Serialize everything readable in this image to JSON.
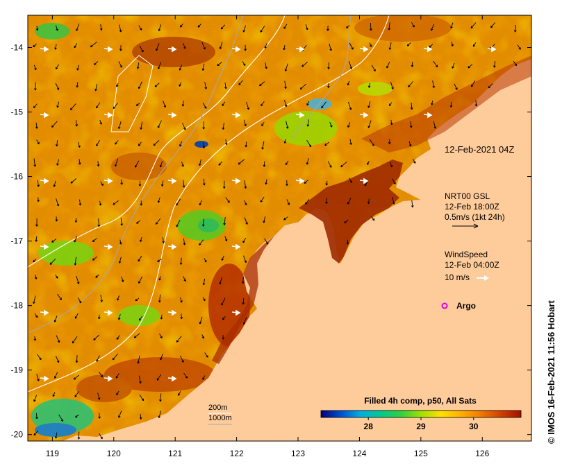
{
  "map": {
    "lon_range": [
      118.6,
      126.8
    ],
    "lat_range": [
      -20.1,
      -13.5
    ],
    "lon_ticks": [
      119,
      120,
      121,
      122,
      123,
      124,
      125,
      126
    ],
    "lat_ticks": [
      -14,
      -15,
      -16,
      -17,
      -18,
      -19,
      -20
    ],
    "lon_tick_labels": [
      "119",
      "120",
      "121",
      "122",
      "123",
      "124",
      "125",
      "126"
    ],
    "lat_tick_labels": [
      "-14",
      "-15",
      "-16",
      "-17",
      "-18",
      "-19",
      "-20"
    ],
    "land_color": "#fecb9b",
    "warm_color": "#e08a00",
    "hot_color": "#a02a00"
  },
  "labels": {
    "timestamp": "12-Feb-2021 04Z",
    "current_title": "NRT00 GSL",
    "current_time": "12-Feb 18:00Z",
    "current_scale": "0.5m/s (1kt 24h)",
    "wind_title": "WindSpeed",
    "wind_time": "12-Feb 04:00Z",
    "wind_scale": "10 m/s",
    "argo_label": "Argo",
    "depth_200": "200m",
    "depth_1000": "1000m",
    "credit": "© IMOS 16-Feb-2021 11:56 Hobart"
  },
  "colorbar": {
    "title": "Filled 4h comp, p50, All Sats",
    "ticks": [
      28,
      29,
      30
    ],
    "tick_labels": [
      "28",
      "29",
      "30"
    ],
    "range": [
      27.1,
      30.9
    ],
    "stops": [
      "#00007a",
      "#0050d0",
      "#00b0e0",
      "#00c890",
      "#30d040",
      "#a0e000",
      "#ffe000",
      "#ffb000",
      "#f07800",
      "#d04000",
      "#a01000"
    ]
  },
  "icons": {
    "argo": "argo-float-icon",
    "current_arrow": "current-arrow-icon",
    "wind_arrow": "wind-arrow-icon"
  }
}
